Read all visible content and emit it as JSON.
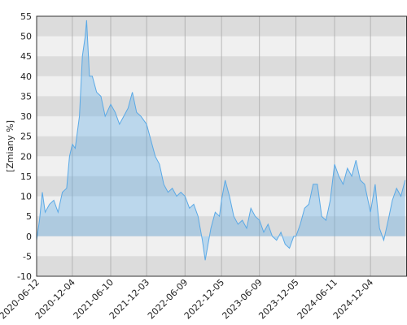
{
  "chart_data": {
    "type": "area",
    "y_label": "[Zmiany %]",
    "x": [
      "2020-06-12",
      "2020-06-26",
      "2020-07-10",
      "2020-07-24",
      "2020-08-14",
      "2020-09-04",
      "2020-09-25",
      "2020-10-16",
      "2020-11-06",
      "2020-11-20",
      "2020-12-04",
      "2020-12-18",
      "2021-01-08",
      "2021-01-22",
      "2021-02-05",
      "2021-02-12",
      "2021-02-26",
      "2021-03-12",
      "2021-04-02",
      "2021-04-23",
      "2021-05-14",
      "2021-06-10",
      "2021-07-02",
      "2021-07-23",
      "2021-08-13",
      "2021-09-03",
      "2021-09-24",
      "2021-10-15",
      "2021-11-05",
      "2021-12-03",
      "2021-12-24",
      "2022-01-14",
      "2022-02-04",
      "2022-02-25",
      "2022-03-18",
      "2022-04-08",
      "2022-04-29",
      "2022-05-20",
      "2022-06-09",
      "2022-07-01",
      "2022-07-22",
      "2022-08-12",
      "2022-09-02",
      "2022-09-16",
      "2022-10-14",
      "2022-11-04",
      "2022-11-25",
      "2022-12-05",
      "2022-12-23",
      "2023-01-13",
      "2023-02-03",
      "2023-02-24",
      "2023-03-17",
      "2023-04-07",
      "2023-04-28",
      "2023-05-19",
      "2023-06-09",
      "2023-06-30",
      "2023-07-21",
      "2023-08-11",
      "2023-09-01",
      "2023-09-22",
      "2023-10-13",
      "2023-11-03",
      "2023-11-24",
      "2023-12-05",
      "2023-12-26",
      "2024-01-16",
      "2024-02-06",
      "2024-02-27",
      "2024-03-19",
      "2024-04-09",
      "2024-04-30",
      "2024-05-21",
      "2024-06-11",
      "2024-07-02",
      "2024-07-23",
      "2024-08-13",
      "2024-09-03",
      "2024-09-24",
      "2024-10-15",
      "2024-11-05",
      "2024-11-26",
      "2024-12-04",
      "2024-12-27",
      "2025-01-17",
      "2025-02-07",
      "2025-03-01",
      "2025-03-21",
      "2025-04-11",
      "2025-05-02",
      "2025-05-23"
    ],
    "values": [
      -1,
      4,
      11,
      6,
      8,
      9,
      6,
      11,
      12,
      20,
      23,
      22,
      30,
      45,
      50,
      54,
      40,
      40,
      36,
      35,
      30,
      33,
      31,
      28,
      30,
      32,
      36,
      31,
      30,
      28,
      24,
      20,
      18,
      13,
      11,
      12,
      10,
      11,
      10,
      7,
      8,
      5,
      -1,
      -6,
      2,
      6,
      5,
      9,
      14,
      10,
      5,
      3,
      4,
      2,
      7,
      5,
      4,
      1,
      3,
      0,
      -1,
      1,
      -2,
      -3,
      0,
      0,
      3,
      7,
      8,
      13,
      13,
      5,
      4,
      9,
      18,
      15,
      13,
      17,
      15,
      19,
      14,
      13,
      8,
      6,
      13,
      2,
      -1,
      4,
      9,
      12,
      10,
      14
    ],
    "color": "#5aa9e6",
    "xlim": [
      "2020-06-12",
      "2025-06-01"
    ],
    "xticks": [
      "2020-06-12",
      "2020-12-04",
      "2021-06-10",
      "2021-12-03",
      "2022-06-09",
      "2022-12-05",
      "2023-06-09",
      "2023-12-05",
      "2024-06-11",
      "2024-12-04"
    ],
    "ylim": [
      -10,
      55
    ],
    "yticks": [
      -10,
      -5,
      0,
      5,
      10,
      15,
      20,
      25,
      30,
      35,
      40,
      45,
      50,
      55
    ],
    "grid": true
  }
}
